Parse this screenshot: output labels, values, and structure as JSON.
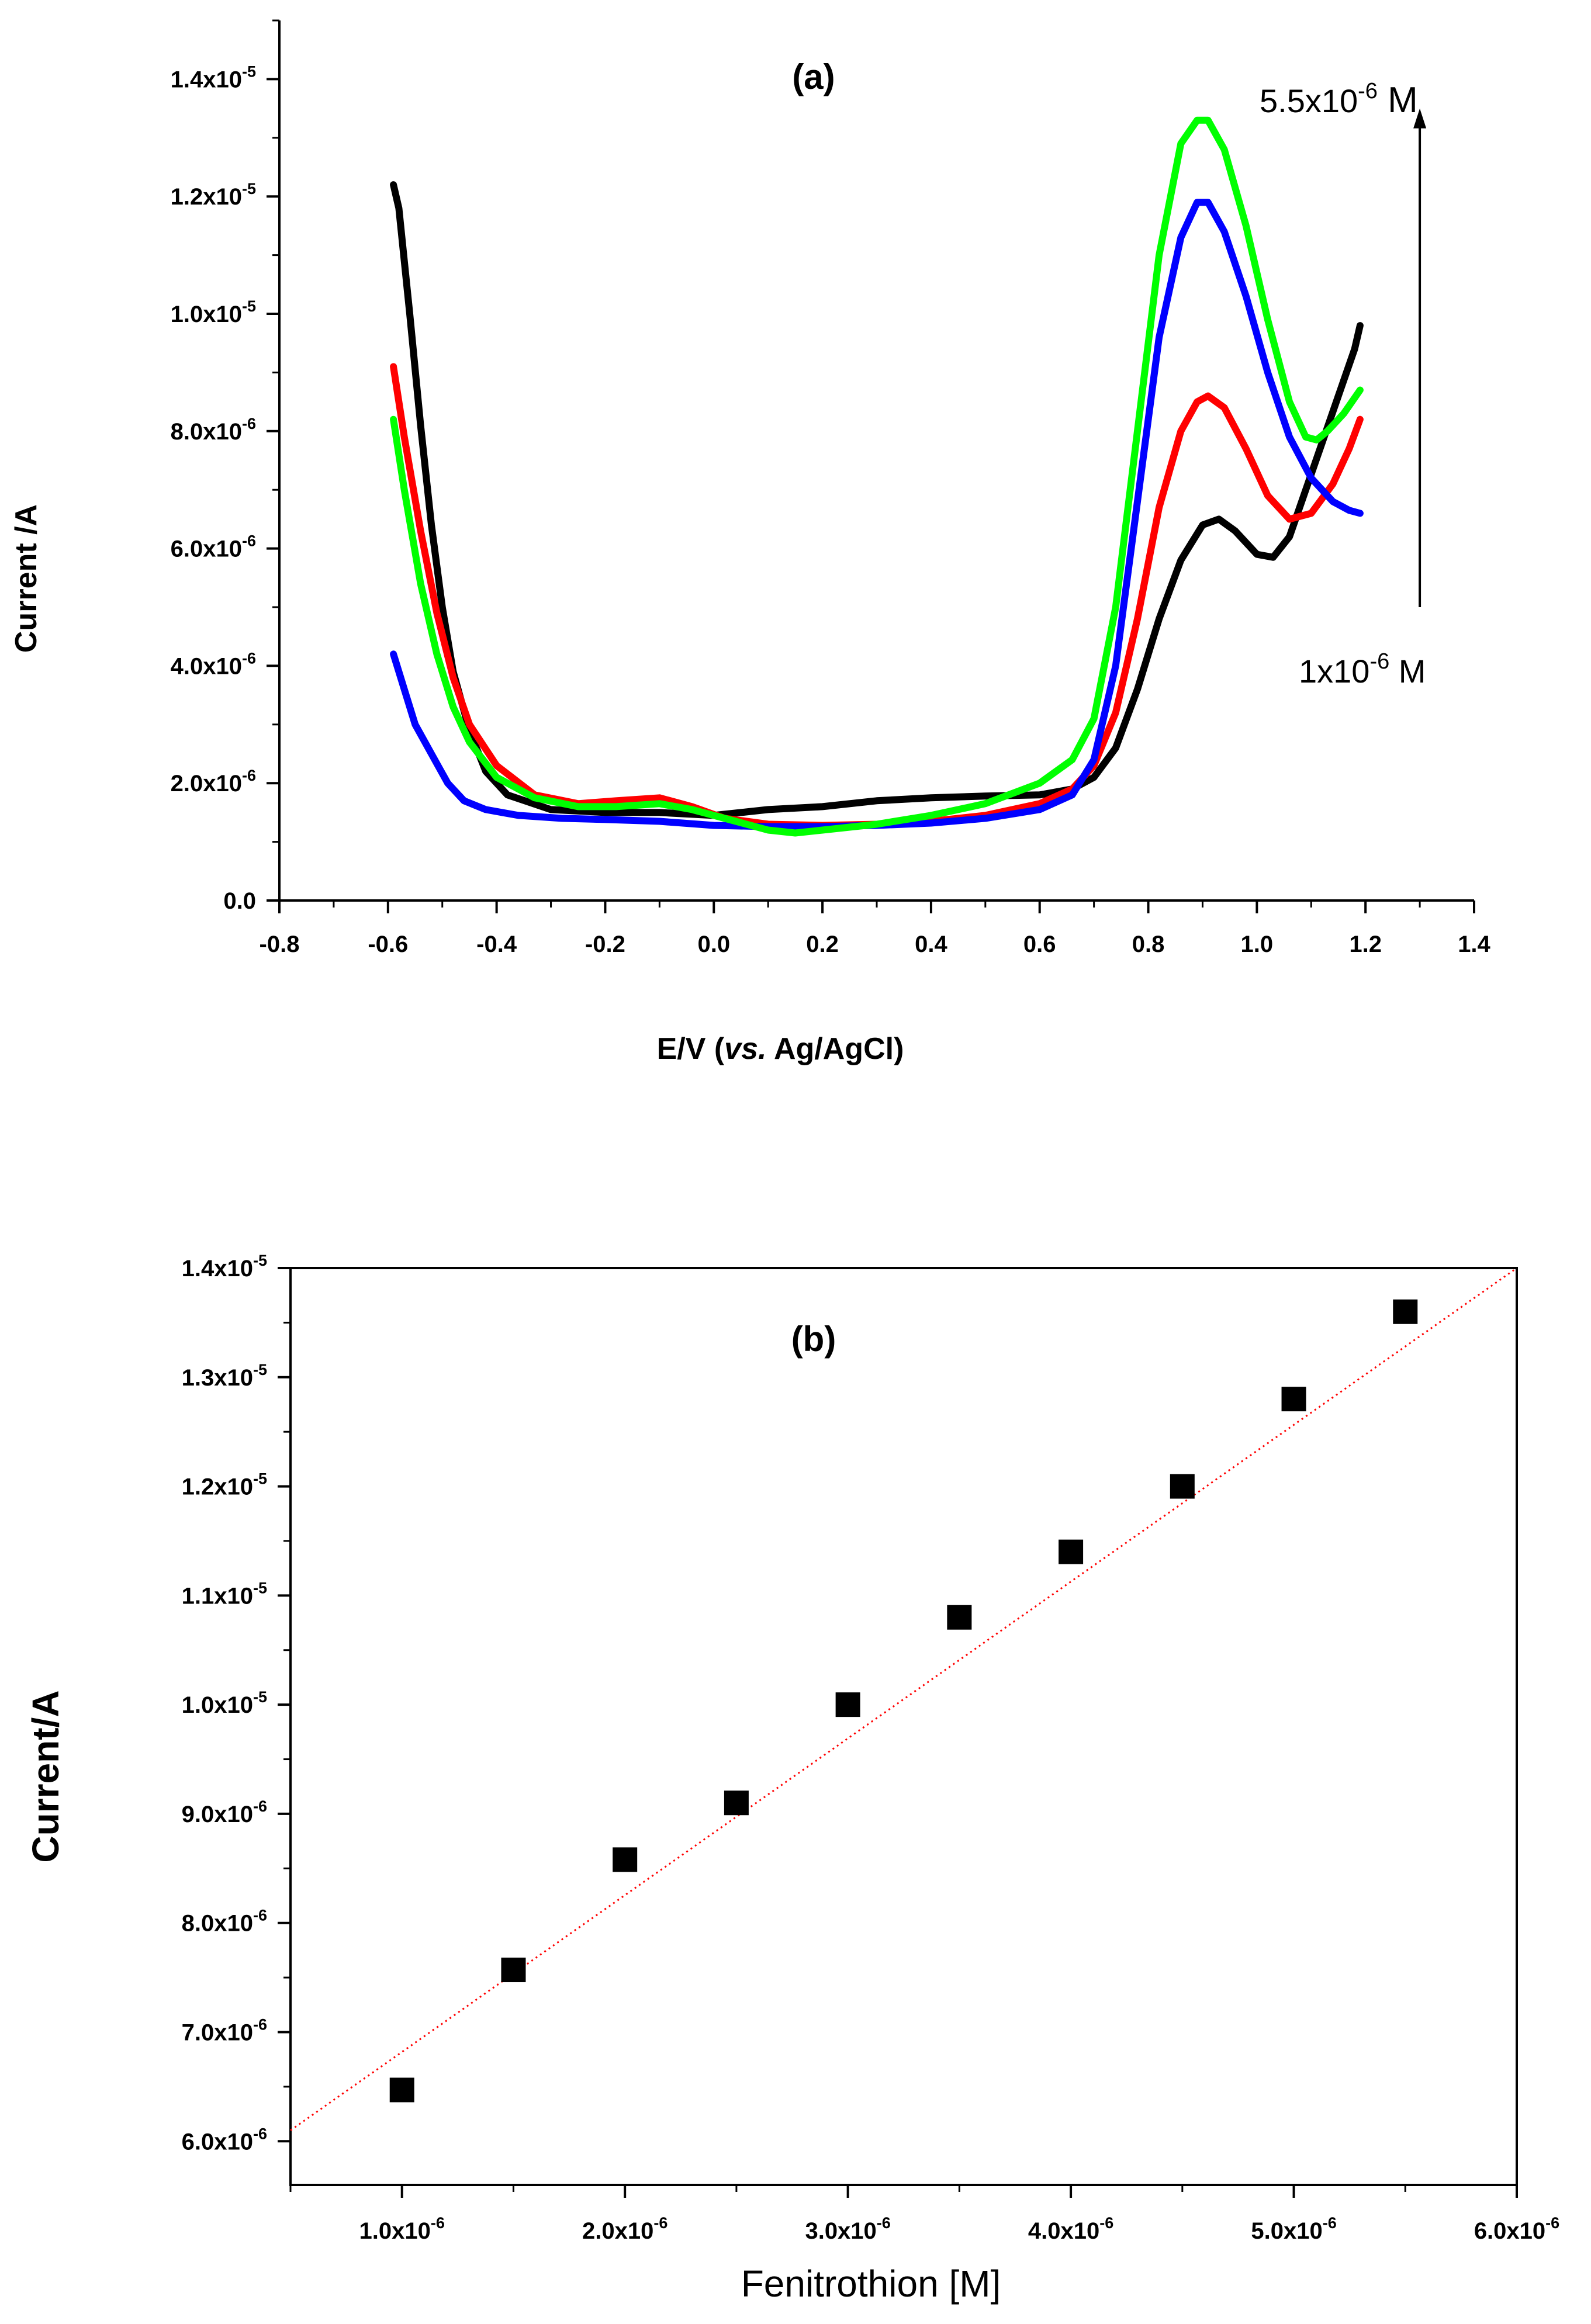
{
  "chart_data": [
    {
      "type": "line",
      "panel_label": "(a)",
      "xlabel": {
        "prefix": "E/V (",
        "italic": "vs.",
        "suffix": " Ag/AgCl)"
      },
      "ylabel": "Current /A",
      "xlim": [
        -0.8,
        1.4
      ],
      "ylim": [
        0,
        1.5e-05
      ],
      "x_ticks": [
        -0.8,
        -0.6,
        -0.4,
        -0.2,
        0.0,
        0.2,
        0.4,
        0.6,
        0.8,
        1.0,
        1.2,
        1.4
      ],
      "x_tick_labels": [
        "-0.8",
        "-0.6",
        "-0.4",
        "-0.2",
        "0.0",
        "0.2",
        "0.4",
        "0.6",
        "0.8",
        "1.0",
        "1.2",
        "1.4"
      ],
      "y_ticks": [
        {
          "value": 0,
          "mant": "0.0",
          "exp": ""
        },
        {
          "value": 2e-06,
          "mant": "2.0x10",
          "exp": "-6"
        },
        {
          "value": 4e-06,
          "mant": "4.0x10",
          "exp": "-6"
        },
        {
          "value": 6e-06,
          "mant": "6.0x10",
          "exp": "-6"
        },
        {
          "value": 8e-06,
          "mant": "8.0x10",
          "exp": "-6"
        },
        {
          "value": 1e-05,
          "mant": "1.0x10",
          "exp": "-5"
        },
        {
          "value": 1.2e-05,
          "mant": "1.2x10",
          "exp": "-5"
        },
        {
          "value": 1.4e-05,
          "mant": "1.4x10",
          "exp": "-5"
        }
      ],
      "annotations": {
        "top": {
          "mant": "5.5x10",
          "exp": "-6",
          "unit": " M"
        },
        "bottom": {
          "mant": "1x10",
          "exp": "-6",
          "unit": " M"
        },
        "arrow_from": [
          1.3,
          5e-06
        ],
        "arrow_to": [
          1.3,
          1.35e-05
        ]
      },
      "series": [
        {
          "name": "1x10^-6 M",
          "color": "#000000",
          "x": [
            -0.59,
            -0.58,
            -0.56,
            -0.54,
            -0.52,
            -0.5,
            -0.48,
            -0.45,
            -0.42,
            -0.38,
            -0.3,
            -0.2,
            -0.1,
            0.0,
            0.1,
            0.2,
            0.3,
            0.4,
            0.5,
            0.6,
            0.66,
            0.7,
            0.74,
            0.78,
            0.82,
            0.86,
            0.9,
            0.93,
            0.96,
            1.0,
            1.03,
            1.06,
            1.09,
            1.12,
            1.15,
            1.18,
            1.19
          ],
          "y": [
            1.22e-05,
            1.18e-05,
            1e-05,
            8.1e-06,
            6.4e-06,
            5e-06,
            3.9e-06,
            2.9e-06,
            2.2e-06,
            1.8e-06,
            1.55e-06,
            1.5e-06,
            1.5e-06,
            1.45e-06,
            1.55e-06,
            1.6e-06,
            1.7e-06,
            1.75e-06,
            1.78e-06,
            1.8e-06,
            1.9e-06,
            2.1e-06,
            2.6e-06,
            3.6e-06,
            4.8e-06,
            5.8e-06,
            6.4e-06,
            6.5e-06,
            6.3e-06,
            5.9e-06,
            5.85e-06,
            6.2e-06,
            7e-06,
            7.8e-06,
            8.6e-06,
            9.4e-06,
            9.8e-06
          ]
        },
        {
          "name": "red",
          "color": "#ff0000",
          "x": [
            -0.59,
            -0.57,
            -0.54,
            -0.51,
            -0.48,
            -0.45,
            -0.4,
            -0.33,
            -0.25,
            -0.18,
            -0.1,
            -0.04,
            0.02,
            0.1,
            0.2,
            0.3,
            0.4,
            0.5,
            0.6,
            0.66,
            0.7,
            0.74,
            0.78,
            0.82,
            0.86,
            0.89,
            0.91,
            0.94,
            0.98,
            1.02,
            1.06,
            1.1,
            1.14,
            1.17,
            1.19
          ],
          "y": [
            9.1e-06,
            7.9e-06,
            6.3e-06,
            4.9e-06,
            3.8e-06,
            3e-06,
            2.3e-06,
            1.8e-06,
            1.65e-06,
            1.7e-06,
            1.75e-06,
            1.6e-06,
            1.4e-06,
            1.3e-06,
            1.28e-06,
            1.3e-06,
            1.35e-06,
            1.45e-06,
            1.65e-06,
            1.9e-06,
            2.3e-06,
            3.2e-06,
            4.8e-06,
            6.7e-06,
            8e-06,
            8.5e-06,
            8.6e-06,
            8.4e-06,
            7.7e-06,
            6.9e-06,
            6.5e-06,
            6.6e-06,
            7.1e-06,
            7.7e-06,
            8.2e-06
          ]
        },
        {
          "name": "blue",
          "color": "#0000ff",
          "x": [
            -0.59,
            -0.57,
            -0.55,
            -0.52,
            -0.49,
            -0.46,
            -0.42,
            -0.36,
            -0.28,
            -0.2,
            -0.1,
            0.0,
            0.1,
            0.2,
            0.3,
            0.4,
            0.5,
            0.6,
            0.66,
            0.7,
            0.74,
            0.78,
            0.82,
            0.86,
            0.89,
            0.91,
            0.94,
            0.98,
            1.02,
            1.06,
            1.1,
            1.14,
            1.17,
            1.19
          ],
          "y": [
            4.2e-06,
            3.6e-06,
            3e-06,
            2.5e-06,
            2e-06,
            1.7e-06,
            1.55e-06,
            1.45e-06,
            1.4e-06,
            1.38e-06,
            1.35e-06,
            1.28e-06,
            1.26e-06,
            1.26e-06,
            1.28e-06,
            1.32e-06,
            1.4e-06,
            1.55e-06,
            1.8e-06,
            2.4e-06,
            4e-06,
            6.8e-06,
            9.6e-06,
            1.13e-05,
            1.19e-05,
            1.19e-05,
            1.14e-05,
            1.03e-05,
            9e-06,
            7.9e-06,
            7.2e-06,
            6.8e-06,
            6.65e-06,
            6.6e-06
          ]
        },
        {
          "name": "5.5x10^-6 M",
          "color": "#00ff00",
          "x": [
            -0.59,
            -0.57,
            -0.54,
            -0.51,
            -0.48,
            -0.45,
            -0.4,
            -0.33,
            -0.25,
            -0.18,
            -0.1,
            -0.04,
            0.02,
            0.1,
            0.15,
            0.2,
            0.3,
            0.4,
            0.5,
            0.6,
            0.66,
            0.7,
            0.74,
            0.78,
            0.82,
            0.86,
            0.89,
            0.91,
            0.94,
            0.98,
            1.02,
            1.06,
            1.09,
            1.11,
            1.13,
            1.16,
            1.19
          ],
          "y": [
            8.2e-06,
            7e-06,
            5.4e-06,
            4.2e-06,
            3.3e-06,
            2.7e-06,
            2.1e-06,
            1.75e-06,
            1.6e-06,
            1.6e-06,
            1.65e-06,
            1.55e-06,
            1.4e-06,
            1.2e-06,
            1.15e-06,
            1.2e-06,
            1.3e-06,
            1.45e-06,
            1.65e-06,
            2e-06,
            2.4e-06,
            3.1e-06,
            5e-06,
            8e-06,
            1.1e-05,
            1.29e-05,
            1.33e-05,
            1.33e-05,
            1.28e-05,
            1.15e-05,
            9.9e-06,
            8.5e-06,
            7.9e-06,
            7.85e-06,
            8e-06,
            8.3e-06,
            8.7e-06
          ]
        }
      ]
    },
    {
      "type": "scatter",
      "panel_label": "(b)",
      "xlabel": "Fenitrothion [M]",
      "ylabel": "Current/A",
      "xlim": [
        5e-07,
        6e-06
      ],
      "ylim": [
        5.6e-06,
        1.4e-05
      ],
      "x_ticks": [
        {
          "value": 1e-06,
          "mant": "1.0x10",
          "exp": "-6"
        },
        {
          "value": 2e-06,
          "mant": "2.0x10",
          "exp": "-6"
        },
        {
          "value": 3e-06,
          "mant": "3.0x10",
          "exp": "-6"
        },
        {
          "value": 4e-06,
          "mant": "4.0x10",
          "exp": "-6"
        },
        {
          "value": 5e-06,
          "mant": "5.0x10",
          "exp": "-6"
        },
        {
          "value": 6e-06,
          "mant": "6.0x10",
          "exp": "-6"
        }
      ],
      "y_ticks": [
        {
          "value": 6e-06,
          "mant": "6.0x10",
          "exp": "-6"
        },
        {
          "value": 7e-06,
          "mant": "7.0x10",
          "exp": "-6"
        },
        {
          "value": 8e-06,
          "mant": "8.0x10",
          "exp": "-6"
        },
        {
          "value": 9e-06,
          "mant": "9.0x10",
          "exp": "-6"
        },
        {
          "value": 1e-05,
          "mant": "1.0x10",
          "exp": "-5"
        },
        {
          "value": 1.1e-05,
          "mant": "1.1x10",
          "exp": "-5"
        },
        {
          "value": 1.2e-05,
          "mant": "1.2x10",
          "exp": "-5"
        },
        {
          "value": 1.3e-05,
          "mant": "1.3x10",
          "exp": "-5"
        },
        {
          "value": 1.4e-05,
          "mant": "1.4x10",
          "exp": "-5"
        }
      ],
      "points": {
        "x": [
          1e-06,
          1.5e-06,
          2e-06,
          2.5e-06,
          3e-06,
          3.5e-06,
          4e-06,
          4.5e-06,
          5e-06,
          5.5e-06
        ],
        "y": [
          6.47e-06,
          7.57e-06,
          8.58e-06,
          9.1e-06,
          1e-05,
          1.08e-05,
          1.14e-05,
          1.2e-05,
          1.28e-05,
          1.36e-05
        ],
        "color": "#000000",
        "marker": "square"
      },
      "fit": {
        "x": [
          5e-07,
          6e-06
        ],
        "y": [
          6.1e-06,
          1.4e-05
        ],
        "color": "#ff0000",
        "style": "dotted"
      }
    }
  ]
}
